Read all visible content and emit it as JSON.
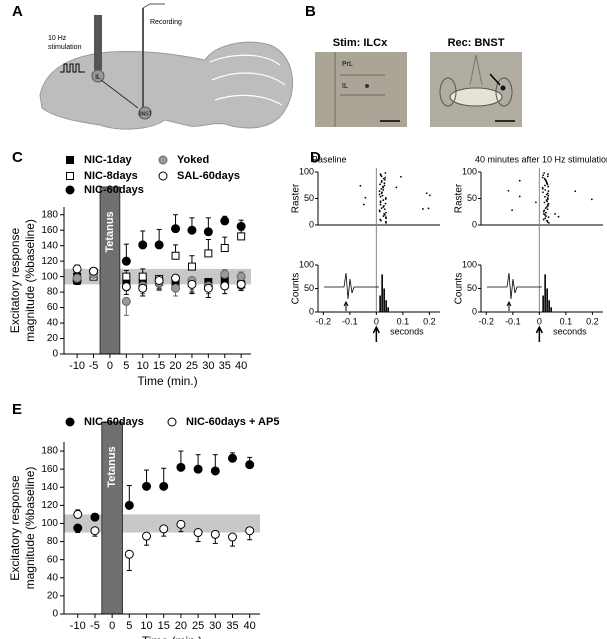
{
  "panels": [
    "A",
    "B",
    "C",
    "D",
    "E"
  ],
  "panel_a": {
    "stimulation": [
      "10 Hz",
      "stimulation"
    ],
    "recording": "Recording",
    "site_il": "IL",
    "site_bnst": "BNST"
  },
  "panel_b": {
    "left_title": "Stim: ILCx",
    "right_title": "Rec: BNST",
    "prl": "PrL",
    "il": "IL"
  },
  "chart_data": [
    {
      "type": "scatter",
      "ylabel": [
        "Excitatory response",
        "magnitude (%baseline)"
      ],
      "xlabel": "Time (min.)",
      "x": [
        -10,
        -5,
        5,
        10,
        15,
        20,
        25,
        30,
        35,
        40
      ],
      "xlim": [
        -14,
        43
      ],
      "xticks": [
        -10,
        -5,
        0,
        5,
        10,
        15,
        20,
        25,
        30,
        35,
        40
      ],
      "ylim": [
        0,
        190
      ],
      "yticks": [
        0,
        20,
        40,
        60,
        80,
        100,
        120,
        140,
        160,
        180
      ],
      "band": [
        90,
        110
      ],
      "tetanus": {
        "label": "Tetanus",
        "xrange": [
          -3,
          3
        ]
      },
      "series": [
        {
          "name": "NIC-1day",
          "marker": "square",
          "color": "#000000",
          "fill": "#000000",
          "values": [
            100,
            105,
            90,
            92,
            93,
            93,
            92,
            93,
            95,
            90
          ],
          "errors": [
            5,
            4,
            8,
            10,
            10,
            10,
            12,
            10,
            6,
            6
          ]
        },
        {
          "name": "NIC-8days",
          "marker": "square",
          "color": "#000000",
          "fill": "#ffffff",
          "values": [
            95,
            100,
            100,
            100,
            97,
            127,
            113,
            130,
            137,
            152
          ],
          "errors": [
            5,
            4,
            8,
            10,
            12,
            14,
            14,
            18,
            14,
            8
          ]
        },
        {
          "name": "NIC-60days",
          "marker": "circle",
          "color": "#000000",
          "fill": "#000000",
          "values": [
            95,
            107,
            120,
            141,
            141,
            162,
            160,
            158,
            172,
            165
          ],
          "errors": [
            5,
            4,
            22,
            18,
            20,
            18,
            16,
            18,
            6,
            8
          ]
        },
        {
          "name": "Yoked",
          "marker": "circle",
          "color": "#666666",
          "fill": "#999999",
          "values": [
            98,
            103,
            68,
            88,
            92,
            85,
            95,
            88,
            103,
            100
          ],
          "errors": [
            5,
            4,
            18,
            10,
            10,
            10,
            12,
            10,
            6,
            6
          ]
        },
        {
          "name": "SAL-60days",
          "marker": "circle",
          "color": "#000000",
          "fill": "#ffffff",
          "values": [
            110,
            107,
            87,
            85,
            95,
            98,
            90,
            85,
            88,
            90
          ],
          "errors": [
            5,
            4,
            10,
            10,
            8,
            10,
            12,
            12,
            10,
            8
          ]
        }
      ]
    },
    {
      "type": "scatter",
      "ylabel": [
        "Excitatory response",
        "magnitude (%baseline)"
      ],
      "xlabel": "Time (min.)",
      "x": [
        -10,
        -5,
        5,
        10,
        15,
        20,
        25,
        30,
        35,
        40
      ],
      "xlim": [
        -14,
        43
      ],
      "xticks": [
        -10,
        -5,
        0,
        5,
        10,
        15,
        20,
        25,
        30,
        35,
        40
      ],
      "ylim": [
        0,
        190
      ],
      "yticks": [
        0,
        20,
        40,
        60,
        80,
        100,
        120,
        140,
        160,
        180
      ],
      "band": [
        90,
        110
      ],
      "tetanus": {
        "label": "Tetanus",
        "xrange": [
          -3,
          3
        ]
      },
      "series": [
        {
          "name": "NIC-60days",
          "marker": "circle",
          "color": "#000000",
          "fill": "#000000",
          "values": [
            95,
            107,
            120,
            141,
            141,
            162,
            160,
            158,
            172,
            165
          ],
          "errors": [
            5,
            4,
            22,
            18,
            20,
            18,
            16,
            18,
            6,
            8
          ]
        },
        {
          "name": "NIC-60days + AP5",
          "marker": "circle",
          "color": "#000000",
          "fill": "#ffffff",
          "values": [
            110,
            92,
            66,
            86,
            94,
            99,
            90,
            88,
            85,
            92
          ],
          "errors": [
            5,
            6,
            18,
            10,
            8,
            8,
            10,
            10,
            10,
            10
          ]
        }
      ]
    },
    {
      "type": "raster",
      "title": "Baseline",
      "raster_label": "Raster",
      "counts_label": "Counts",
      "xlabel": "seconds",
      "xlim": [
        -0.22,
        0.24
      ],
      "xticks": [
        -0.2,
        -0.1,
        0,
        0.1,
        0.2
      ],
      "raster_ylim": [
        0,
        100
      ],
      "raster_yticks": [
        0,
        50,
        100
      ],
      "counts_ylim": [
        0,
        100
      ],
      "counts_yticks": [
        0,
        50,
        100
      ]
    },
    {
      "type": "raster",
      "title": "40 minutes after 10 Hz stimulation",
      "raster_label": "Raster",
      "counts_label": "Counts",
      "xlabel": "seconds",
      "xlim": [
        -0.22,
        0.24
      ],
      "xticks": [
        -0.2,
        -0.1,
        0,
        0.1,
        0.2
      ],
      "raster_ylim": [
        0,
        100
      ],
      "raster_yticks": [
        0,
        50,
        100
      ],
      "counts_ylim": [
        0,
        100
      ],
      "counts_yticks": [
        0,
        50,
        100
      ]
    }
  ]
}
